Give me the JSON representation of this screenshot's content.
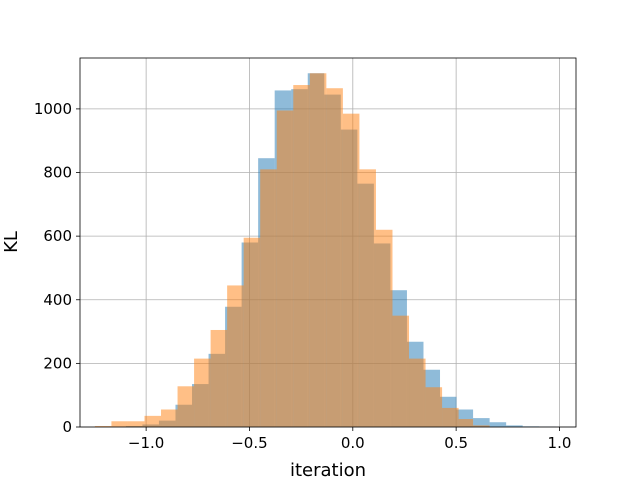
{
  "chart_data": {
    "type": "bar",
    "subtype": "overlaid-histogram",
    "xlabel": "iteration",
    "ylabel": "KL",
    "xlim": [
      -1.32,
      1.08
    ],
    "ylim": [
      0,
      1160
    ],
    "grid": true,
    "xticks": [
      -1.0,
      -0.5,
      0.0,
      0.5,
      1.0
    ],
    "xtick_labels": [
      "−1.0",
      "−0.5",
      "0.0",
      "0.5",
      "1.0"
    ],
    "yticks": [
      0,
      200,
      400,
      600,
      800,
      1000
    ],
    "ytick_labels": [
      "0",
      "200",
      "400",
      "600",
      "800",
      "1000"
    ],
    "series": [
      {
        "color": "#1f77b4",
        "opacity": 0.5,
        "bin_edges": [
          -1.178,
          -1.098,
          -1.018,
          -0.938,
          -0.858,
          -0.778,
          -0.698,
          -0.618,
          -0.538,
          -0.458,
          -0.378,
          -0.298,
          -0.218,
          -0.138,
          -0.058,
          0.022,
          0.102,
          0.182,
          0.262,
          0.342,
          0.422,
          0.502,
          0.582,
          0.662,
          0.742,
          0.822,
          0.902,
          0.982
        ],
        "counts": [
          1,
          3,
          8,
          20,
          70,
          135,
          230,
          378,
          580,
          845,
          1058,
          1062,
          1112,
          1045,
          935,
          765,
          577,
          430,
          268,
          180,
          95,
          55,
          28,
          15,
          5,
          2,
          1
        ]
      },
      {
        "color": "#ff7f0e",
        "opacity": 0.5,
        "bin_edges": [
          -1.248,
          -1.168,
          -1.088,
          -1.008,
          -0.928,
          -0.848,
          -0.768,
          -0.688,
          -0.608,
          -0.528,
          -0.448,
          -0.368,
          -0.288,
          -0.208,
          -0.128,
          -0.048,
          0.032,
          0.112,
          0.192,
          0.272,
          0.352,
          0.432,
          0.512,
          0.582,
          0.662
        ],
        "counts": [
          3,
          18,
          18,
          35,
          55,
          128,
          215,
          305,
          445,
          595,
          810,
          995,
          1075,
          1112,
          1065,
          985,
          810,
          620,
          350,
          215,
          125,
          60,
          25,
          5
        ]
      }
    ]
  }
}
